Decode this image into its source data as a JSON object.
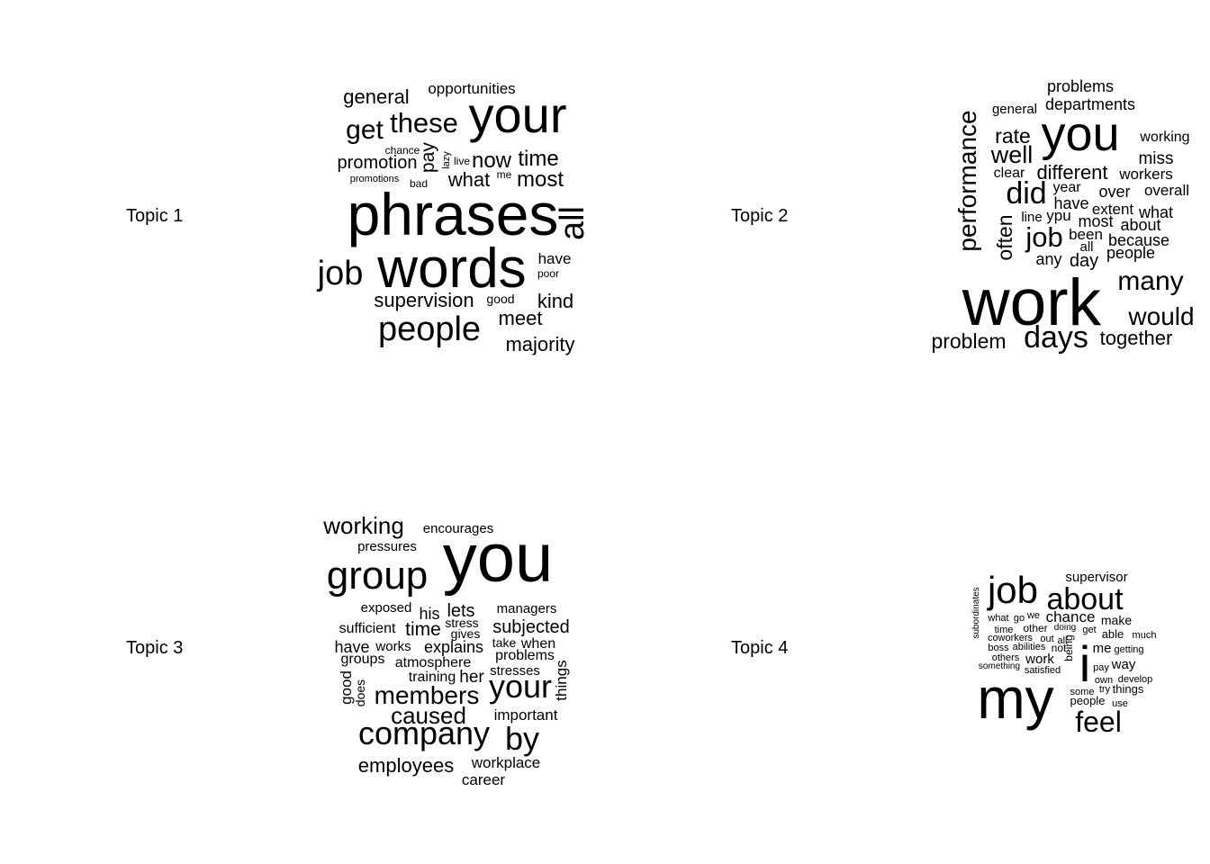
{
  "chart_data": [
    {
      "type": "wordcloud",
      "label": "Topic 1",
      "words": [
        "general",
        "opportunities",
        "get",
        "these",
        "your",
        "chance",
        "lazy",
        "pay",
        "live",
        "now",
        "time",
        "promotion",
        "promotions",
        "bad",
        "me",
        "what",
        "most",
        "phrases",
        "all",
        "job",
        "words",
        "have",
        "poor",
        "supervision",
        "good",
        "kind",
        "people",
        "meet",
        "majority"
      ]
    },
    {
      "type": "wordcloud",
      "label": "Topic 2",
      "words": [
        "problems",
        "general",
        "departments",
        "performance",
        "rate",
        "you",
        "working",
        "well",
        "miss",
        "clear",
        "different",
        "workers",
        "did",
        "year",
        "over",
        "overall",
        "have",
        "extent",
        "line",
        "ypu",
        "what",
        "often",
        "most",
        "about",
        "job",
        "been",
        "because",
        "all",
        "people",
        "any",
        "day",
        "many",
        "work",
        "would",
        "problem",
        "days",
        "together"
      ]
    },
    {
      "type": "wordcloud",
      "label": "Topic 3",
      "words": [
        "working",
        "encourages",
        "pressures",
        "you",
        "group",
        "exposed",
        "his",
        "lets",
        "managers",
        "stress",
        "sufficient",
        "time",
        "subjected",
        "gives",
        "take",
        "when",
        "have",
        "works",
        "explains",
        "problems",
        "groups",
        "atmosphere",
        "training",
        "her",
        "stresses",
        "things",
        "good",
        "does",
        "your",
        "members",
        "caused",
        "important",
        "company",
        "by",
        "employees",
        "workplace",
        "career"
      ]
    },
    {
      "type": "wordcloud",
      "label": "Topic 4",
      "words": [
        "supervisor",
        "job",
        "about",
        "subordinates",
        "what",
        "go",
        "we",
        "chance",
        "time",
        "other",
        "doing",
        "make",
        "get",
        "coworkers",
        "out",
        "all",
        "able",
        "much",
        "boss",
        "abilities",
        "not",
        "i",
        "being",
        "me",
        "getting",
        "others",
        "work",
        "something",
        "satisfied",
        "pay",
        "way",
        "own",
        "develop",
        "some",
        "try",
        "things",
        "people",
        "use",
        "my",
        "feel"
      ]
    }
  ]
}
